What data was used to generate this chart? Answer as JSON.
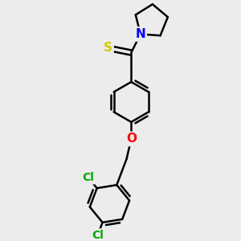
{
  "background_color": "#ececec",
  "atom_colors": {
    "S": "#cccc00",
    "N": "#0000ff",
    "O": "#ff0000",
    "Cl": "#00aa00",
    "C": "#000000"
  },
  "bond_lw": 1.8,
  "figsize": [
    3.0,
    3.0
  ],
  "dpi": 100,
  "xlim": [
    -2.8,
    2.8
  ],
  "ylim": [
    -4.2,
    3.2
  ]
}
